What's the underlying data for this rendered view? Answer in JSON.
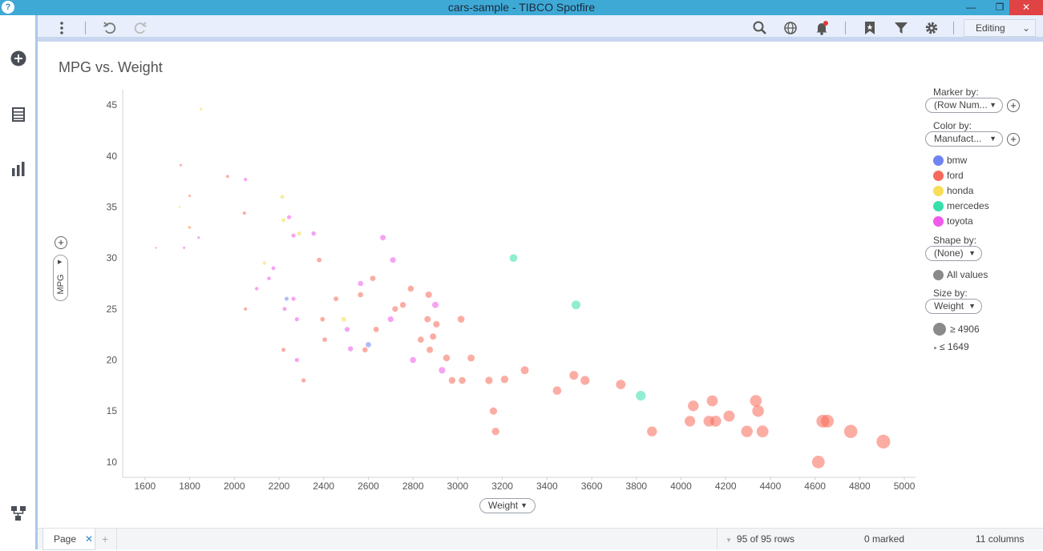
{
  "window": {
    "title": "cars-sample - TIBCO Spotfire"
  },
  "toolbar": {
    "mode_label": "Editing"
  },
  "viz": {
    "title": "MPG vs. Weight",
    "x_axis_pill": "Weight",
    "y_axis_pill": "MPG"
  },
  "legend": {
    "marker_by_label": "Marker by:",
    "marker_by_value": "(Row Num...",
    "color_by_label": "Color by:",
    "color_by_value": "Manufact...",
    "colors": [
      {
        "name": "bmw",
        "color": "#6f84f2"
      },
      {
        "name": "ford",
        "color": "#f76a5a"
      },
      {
        "name": "honda",
        "color": "#f8dd58"
      },
      {
        "name": "mercedes",
        "color": "#36e0ad"
      },
      {
        "name": "toyota",
        "color": "#ef5ae8"
      }
    ],
    "shape_by_label": "Shape by:",
    "shape_by_value": "(None)",
    "shape_all_values": "All values",
    "size_by_label": "Size by:",
    "size_by_value": "Weight",
    "size_max": "≥ 4906",
    "size_min": "≤ 1649"
  },
  "status": {
    "page_tab": "Page",
    "rows": "95 of 95 rows",
    "marked": "0 marked",
    "columns": "11 columns"
  },
  "chart_data": {
    "type": "scatter",
    "title": "MPG vs. Weight",
    "xlabel": "Weight",
    "ylabel": "MPG",
    "xlim": [
      1500,
      5050
    ],
    "ylim": [
      8.5,
      46.5
    ],
    "xticks": [
      1600,
      1800,
      2000,
      2200,
      2400,
      2600,
      2800,
      3000,
      3200,
      3400,
      3600,
      3800,
      4000,
      4200,
      4400,
      4600,
      4800,
      5000
    ],
    "yticks": [
      10,
      15,
      20,
      25,
      30,
      35,
      40,
      45
    ],
    "grid": false,
    "legend_position": "right",
    "size_range": [
      1649,
      4906
    ],
    "series": [
      {
        "name": "bmw",
        "color": "#6f84f2",
        "points": [
          [
            2234,
            26
          ],
          [
            2600,
            21.5
          ]
        ]
      },
      {
        "name": "ford",
        "color": "#f76a5a",
        "points": [
          [
            1649,
            31
          ],
          [
            1760,
            39.1
          ],
          [
            1800,
            36.1
          ],
          [
            1800,
            33
          ],
          [
            1970,
            38
          ],
          [
            2045,
            34.4
          ],
          [
            2050,
            25
          ],
          [
            2220,
            21
          ],
          [
            2310,
            18
          ],
          [
            2380,
            29.8
          ],
          [
            2395,
            24
          ],
          [
            2405,
            22
          ],
          [
            2455,
            26
          ],
          [
            2565,
            26.4
          ],
          [
            2585,
            21
          ],
          [
            2620,
            28
          ],
          [
            2635,
            23
          ],
          [
            2720,
            25
          ],
          [
            2755,
            25.4
          ],
          [
            2790,
            27
          ],
          [
            2835,
            22
          ],
          [
            2865,
            24
          ],
          [
            2870,
            26.4
          ],
          [
            2875,
            21
          ],
          [
            2890,
            22.3
          ],
          [
            2905,
            23.5
          ],
          [
            2950,
            20.2
          ],
          [
            2975,
            18
          ],
          [
            3015,
            24
          ],
          [
            3020,
            18
          ],
          [
            3060,
            20.2
          ],
          [
            3140,
            18
          ],
          [
            3160,
            15
          ],
          [
            3170,
            13
          ],
          [
            3210,
            18.1
          ],
          [
            3300,
            19
          ],
          [
            3445,
            17
          ],
          [
            3520,
            18.5
          ],
          [
            3570,
            18
          ],
          [
            3730,
            17.6
          ],
          [
            3870,
            13
          ],
          [
            4040,
            14
          ],
          [
            4055,
            15.5
          ],
          [
            4125,
            14
          ],
          [
            4140,
            16
          ],
          [
            4155,
            14
          ],
          [
            4215,
            14.5
          ],
          [
            4295,
            13
          ],
          [
            4335,
            16
          ],
          [
            4345,
            15
          ],
          [
            4365,
            13
          ],
          [
            4615,
            10
          ],
          [
            4635,
            14
          ],
          [
            4655,
            14
          ],
          [
            4760,
            13
          ],
          [
            4906,
            12
          ]
        ]
      },
      {
        "name": "honda",
        "color": "#f8dd58",
        "points": [
          [
            1850,
            44.6
          ],
          [
            1755,
            35
          ],
          [
            1795,
            33
          ],
          [
            2215,
            36
          ],
          [
            2220,
            33.7
          ],
          [
            2135,
            29.5
          ],
          [
            2290,
            32.4
          ],
          [
            2490,
            24
          ]
        ]
      },
      {
        "name": "mercedes",
        "color": "#36e0ad",
        "points": [
          [
            3250,
            30
          ],
          [
            3530,
            25.4
          ],
          [
            3820,
            16.5
          ]
        ]
      },
      {
        "name": "toyota",
        "color": "#ef5ae8",
        "points": [
          [
            1775,
            31
          ],
          [
            1840,
            32
          ],
          [
            2050,
            37.7
          ],
          [
            2100,
            27
          ],
          [
            2155,
            28
          ],
          [
            2175,
            29
          ],
          [
            2225,
            25
          ],
          [
            2245,
            34
          ],
          [
            2265,
            32.2
          ],
          [
            2265,
            26
          ],
          [
            2280,
            20
          ],
          [
            2280,
            24
          ],
          [
            2355,
            32.4
          ],
          [
            2505,
            23
          ],
          [
            2520,
            21.1
          ],
          [
            2565,
            27.5
          ],
          [
            2665,
            32
          ],
          [
            2700,
            24
          ],
          [
            2710,
            29.8
          ],
          [
            2800,
            20
          ],
          [
            2900,
            25.4
          ],
          [
            2930,
            19
          ]
        ]
      }
    ]
  }
}
